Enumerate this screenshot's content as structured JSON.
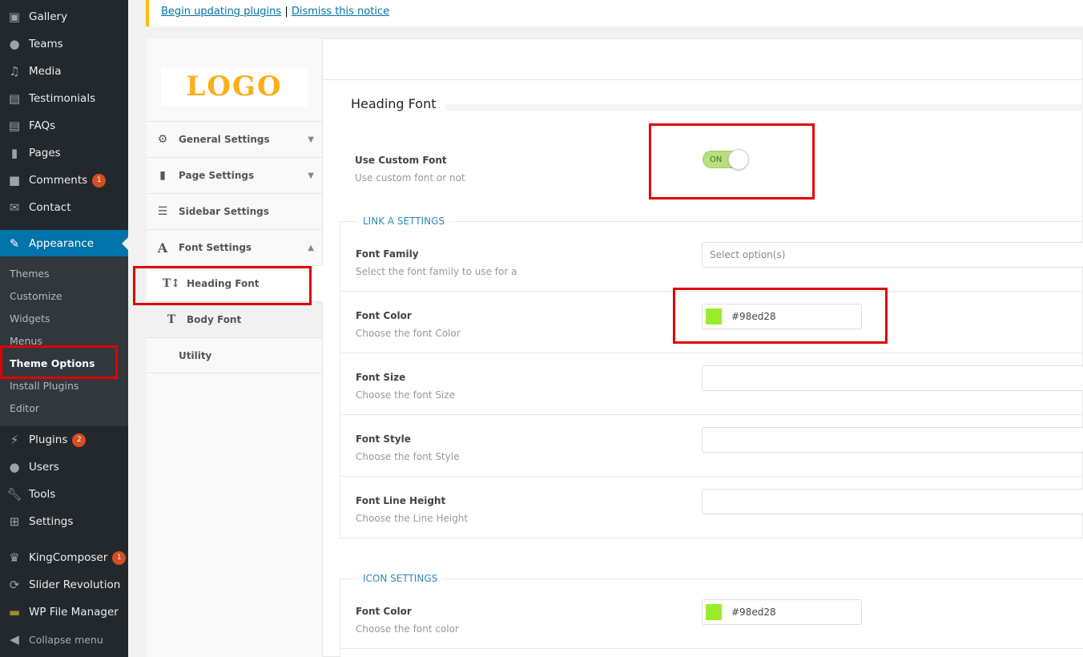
{
  "admin_menu": {
    "items": [
      {
        "label": "Gallery",
        "icon": "gallery-icon"
      },
      {
        "label": "Teams",
        "icon": "teams-icon"
      },
      {
        "label": "Media",
        "icon": "media-icon"
      },
      {
        "label": "Testimonials",
        "icon": "testimonials-icon"
      },
      {
        "label": "FAQs",
        "icon": "faqs-icon"
      },
      {
        "label": "Pages",
        "icon": "pages-icon"
      },
      {
        "label": "Comments",
        "icon": "comments-icon",
        "badge": "1"
      },
      {
        "label": "Contact",
        "icon": "mail-icon"
      },
      {
        "label": "Appearance",
        "icon": "brush-icon"
      },
      {
        "label": "Plugins",
        "icon": "plugins-icon",
        "badge": "2"
      },
      {
        "label": "Users",
        "icon": "users-icon"
      },
      {
        "label": "Tools",
        "icon": "tools-icon"
      },
      {
        "label": "Settings",
        "icon": "settings-icon"
      },
      {
        "label": "KingComposer",
        "icon": "crown-icon",
        "badge": "1"
      },
      {
        "label": "Slider Revolution",
        "icon": "refresh-icon"
      },
      {
        "label": "WP File Manager",
        "icon": "folder-icon"
      },
      {
        "label": "Collapse menu",
        "icon": "collapse-icon"
      }
    ],
    "submenu": [
      "Themes",
      "Customize",
      "Widgets",
      "Menus",
      "Theme Options",
      "Install Plugins",
      "Editor"
    ]
  },
  "notice": {
    "link1": "Begin updating plugins",
    "sep": "|",
    "link2": "Dismiss this notice"
  },
  "logo": "LOGO",
  "options_nav": [
    {
      "label": "General Settings"
    },
    {
      "label": "Page Settings"
    },
    {
      "label": "Sidebar Settings"
    },
    {
      "label": "Font Settings"
    },
    {
      "label": "Heading Font"
    },
    {
      "label": "Body Font"
    },
    {
      "label": "Utility"
    }
  ],
  "main": {
    "title": "Heading Font",
    "custom_font": {
      "label": "Use Custom Font",
      "desc": "Use custom font or not",
      "toggle": "ON",
      "value": true
    },
    "link_section": "LINK A SETTINGS",
    "font_family": {
      "label": "Font Family",
      "desc": "Select the font family to use for a",
      "placeholder": "Select option(s)"
    },
    "font_color": {
      "label": "Font Color",
      "desc": "Choose the font Color",
      "value": "#98ed28"
    },
    "font_size": {
      "label": "Font Size",
      "desc": "Choose the font Size"
    },
    "font_style": {
      "label": "Font Style",
      "desc": "Choose the font Style"
    },
    "line_height": {
      "label": "Font Line Height",
      "desc": "Choose the Line Height"
    },
    "icon_section": "ICON SETTINGS",
    "icon_color": {
      "label": "Font Color",
      "desc": "Choose the font color",
      "value": "#98ed28"
    }
  },
  "colors": {
    "accent": "#0073aa",
    "swatch": "#98ed28",
    "highlight": "#e00000"
  }
}
